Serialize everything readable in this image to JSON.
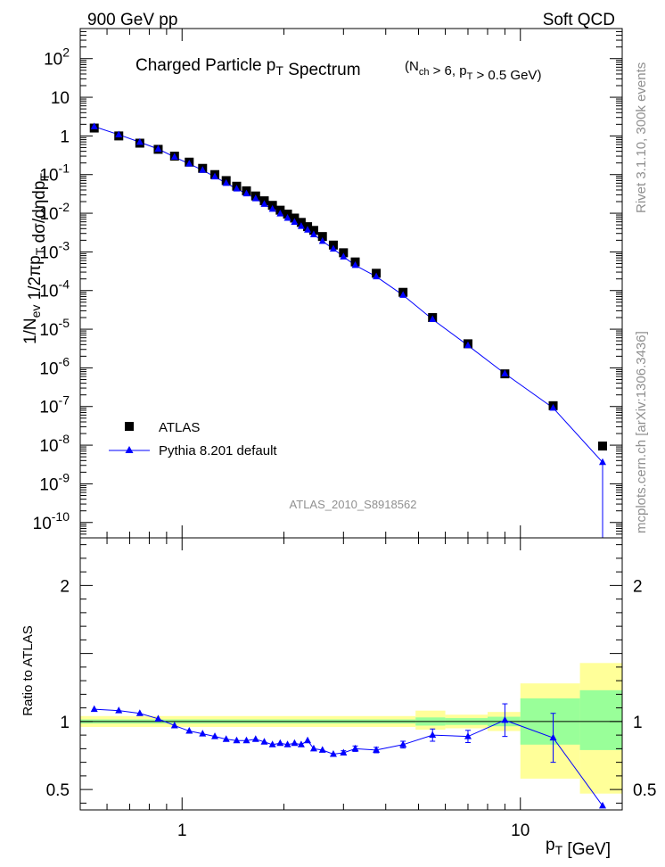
{
  "header": {
    "energy_label": "900 GeV pp",
    "process_label": "Soft QCD"
  },
  "side": {
    "rivet_label": "Rivet 3.1.10,  300k events",
    "source_label": "mcplots.cern.ch [arXiv:1306.3436]"
  },
  "chart_data": [
    {
      "type": "scatter",
      "title": "Charged Particle p_T Spectrum",
      "subtitle": "(N_ch > 6, p_T > 0.5 GeV)",
      "ylabel": "1/N_ev 1/2πp_T dσ/dηdp_T",
      "xlabel": "",
      "analysis_tag": "ATLAS_2010_S8918562",
      "xscale": "log",
      "yscale": "log",
      "xlim": [
        0.5,
        20
      ],
      "ylim": [
        4e-11,
        600
      ],
      "legend_position": "bottom-left",
      "x_ticks": [],
      "y_ticks": [
        {
          "v": 1e-10,
          "label": "10^-10"
        },
        {
          "v": 1e-09,
          "label": "10^-9"
        },
        {
          "v": 1e-08,
          "label": "10^-8"
        },
        {
          "v": 1e-07,
          "label": "10^-7"
        },
        {
          "v": 1e-06,
          "label": "10^-6"
        },
        {
          "v": 1e-05,
          "label": "10^-5"
        },
        {
          "v": 0.0001,
          "label": "10^-4"
        },
        {
          "v": 0.001,
          "label": "10^-3"
        },
        {
          "v": 0.01,
          "label": "10^-2"
        },
        {
          "v": 0.1,
          "label": "10^-1"
        },
        {
          "v": 1,
          "label": "1"
        },
        {
          "v": 10,
          "label": "10"
        },
        {
          "v": 100,
          "label": "10^2"
        }
      ],
      "x": [
        0.55,
        0.65,
        0.75,
        0.85,
        0.95,
        1.05,
        1.15,
        1.25,
        1.35,
        1.45,
        1.55,
        1.65,
        1.75,
        1.85,
        1.95,
        2.05,
        2.15,
        2.25,
        2.35,
        2.45,
        2.6,
        2.8,
        3.0,
        3.25,
        3.75,
        4.5,
        5.5,
        7.0,
        9.0,
        12.5,
        17.5
      ],
      "series": [
        {
          "name": "ATLAS",
          "color": "#000000",
          "marker": "square",
          "values": [
            1.6,
            1.0,
            0.65,
            0.45,
            0.3,
            0.21,
            0.145,
            0.1,
            0.07,
            0.05,
            0.038,
            0.028,
            0.021,
            0.016,
            0.012,
            0.0095,
            0.0075,
            0.0058,
            0.0045,
            0.0036,
            0.0025,
            0.0015,
            0.00095,
            0.00055,
            0.00028,
            9e-05,
            2e-05,
            4.2e-06,
            7e-07,
            1.05e-07,
            9.5e-09
          ]
        },
        {
          "name": "Pythia 8.201 default",
          "color": "#0000ff",
          "marker": "triangle",
          "values": [
            1.75,
            1.08,
            0.69,
            0.46,
            0.285,
            0.19,
            0.13,
            0.088,
            0.06,
            0.043,
            0.032,
            0.024,
            0.0172,
            0.0128,
            0.0097,
            0.0075,
            0.0059,
            0.0046,
            0.0037,
            0.0028,
            0.0019,
            0.0012,
            0.00075,
            0.00045,
            0.00023,
            7.6e-05,
            1.8e-05,
            3.8e-06,
            7.1e-07,
            9.2e-08,
            3.6e-09
          ]
        }
      ]
    },
    {
      "type": "scatter",
      "title": "",
      "xlabel": "p_T [GeV]",
      "ylabel": "Ratio to ATLAS",
      "xscale": "log",
      "xlim": [
        0.5,
        20
      ],
      "ylim": [
        0.35,
        2.35
      ],
      "reference_line": 1.0,
      "x_ticks": [
        {
          "v": 1,
          "label": "1"
        },
        {
          "v": 10,
          "label": "10"
        }
      ],
      "y_ticks": [
        {
          "v": 0.5,
          "label": "0.5"
        },
        {
          "v": 1,
          "label": "1"
        },
        {
          "v": 2,
          "label": "2"
        }
      ],
      "bands": [
        {
          "x0": 0.5,
          "x1": 4.9,
          "green": [
            0.985,
            1.015
          ],
          "yellow": [
            0.96,
            1.04
          ]
        },
        {
          "x0": 4.9,
          "x1": 6.0,
          "green": [
            0.97,
            1.03
          ],
          "yellow": [
            0.94,
            1.08
          ]
        },
        {
          "x0": 6.0,
          "x1": 8.0,
          "green": [
            0.975,
            1.025
          ],
          "yellow": [
            0.95,
            1.05
          ]
        },
        {
          "x0": 8.0,
          "x1": 10.0,
          "green": [
            0.965,
            1.035
          ],
          "yellow": [
            0.93,
            1.07
          ]
        },
        {
          "x0": 10.0,
          "x1": 15.0,
          "green": [
            0.83,
            1.17
          ],
          "yellow": [
            0.58,
            1.28
          ]
        },
        {
          "x0": 15.0,
          "x1": 20.0,
          "green": [
            0.79,
            1.23
          ],
          "yellow": [
            0.47,
            1.43
          ]
        }
      ],
      "series": [
        {
          "name": "Pythia 8.201 default",
          "color": "#0000ff",
          "marker": "triangle",
          "x": [
            0.55,
            0.65,
            0.75,
            0.85,
            0.95,
            1.05,
            1.15,
            1.25,
            1.35,
            1.45,
            1.55,
            1.65,
            1.75,
            1.85,
            1.95,
            2.05,
            2.15,
            2.25,
            2.35,
            2.45,
            2.6,
            2.8,
            3.0,
            3.25,
            3.75,
            4.5,
            5.5,
            7.0,
            9.0,
            12.5,
            17.5
          ],
          "values": [
            1.09,
            1.08,
            1.06,
            1.02,
            0.97,
            0.93,
            0.91,
            0.89,
            0.87,
            0.86,
            0.86,
            0.87,
            0.85,
            0.83,
            0.84,
            0.83,
            0.84,
            0.83,
            0.86,
            0.8,
            0.79,
            0.76,
            0.77,
            0.8,
            0.79,
            0.83,
            0.9,
            0.89,
            1.01,
            0.88,
            0.38
          ],
          "err": [
            0,
            0,
            0,
            0,
            0,
            0,
            0,
            0,
            0,
            0,
            0,
            0,
            0,
            0,
            0,
            0,
            0,
            0,
            0,
            0,
            0,
            0,
            0.015,
            0.02,
            0.02,
            0.025,
            0.045,
            0.045,
            0.12,
            0.18,
            0
          ]
        }
      ]
    }
  ]
}
